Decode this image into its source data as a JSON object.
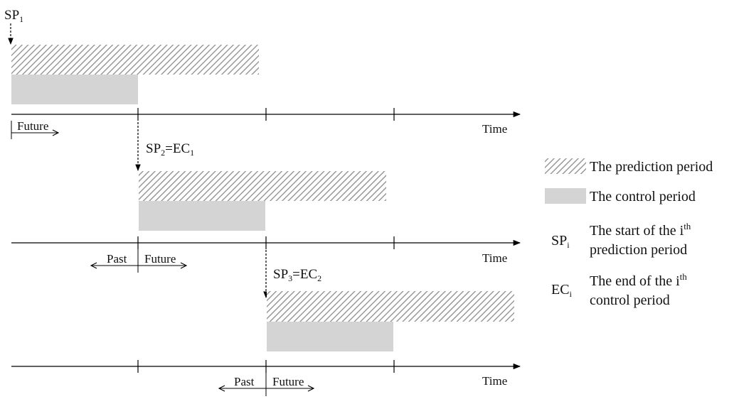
{
  "colors": {
    "prediction_hatch": "#8c8c8c",
    "control_fill": "#d4d4d4",
    "line": "#000000"
  },
  "timelines": [
    {
      "time_label": "Time",
      "start_label": {
        "main": "SP",
        "sub": "1"
      },
      "arrows": [
        {
          "label": "Future"
        }
      ]
    },
    {
      "time_label": "Time",
      "start_label": {
        "main1": "SP",
        "sub1": "2",
        "eq": "=EC",
        "sub2": "1"
      },
      "arrows": [
        {
          "label": "Past"
        },
        {
          "label": "Future"
        }
      ]
    },
    {
      "time_label": "Time",
      "start_label": {
        "main1": "SP",
        "sub1": "3",
        "eq": "=EC",
        "sub2": "2"
      },
      "arrows": [
        {
          "label": "Past"
        },
        {
          "label": "Future"
        }
      ]
    }
  ],
  "legend": {
    "prediction": "The prediction period",
    "control": "The control period",
    "sp": {
      "symbol": "SP",
      "symbol_sub": "i",
      "line1_a": "The start of the i",
      "line1_sup": "th",
      "line2": "prediction period"
    },
    "ec": {
      "symbol": "EC",
      "symbol_sub": "i",
      "line1_a": "The end of the i",
      "line1_sup": "th",
      "line2": "control period"
    }
  }
}
